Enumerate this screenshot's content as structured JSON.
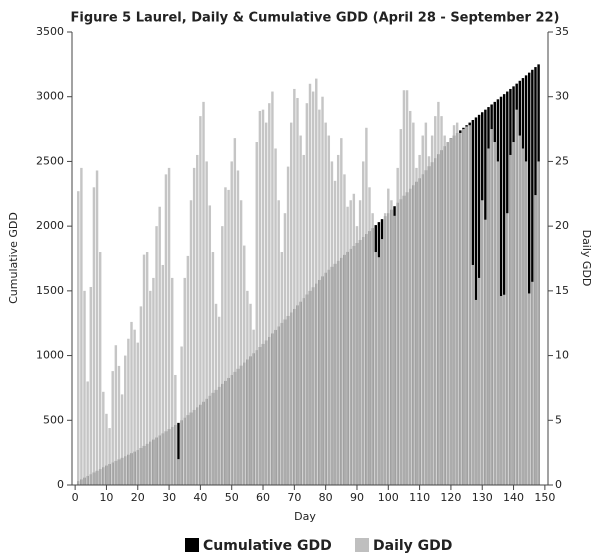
{
  "chart_data": {
    "type": "bar",
    "title": "Figure 5 Laurel, Daily & Cumulative GDD (April 28 - September 22)",
    "xlabel": "Day",
    "ylabel": "Cumulative GDD",
    "y2label": "Daily GDD",
    "x": [
      1,
      2,
      3,
      4,
      5,
      6,
      7,
      8,
      9,
      10,
      11,
      12,
      13,
      14,
      15,
      16,
      17,
      18,
      19,
      20,
      21,
      22,
      23,
      24,
      25,
      26,
      27,
      28,
      29,
      30,
      31,
      32,
      33,
      34,
      35,
      36,
      37,
      38,
      39,
      40,
      41,
      42,
      43,
      44,
      45,
      46,
      47,
      48,
      49,
      50,
      51,
      52,
      53,
      54,
      55,
      56,
      57,
      58,
      59,
      60,
      61,
      62,
      63,
      64,
      65,
      66,
      67,
      68,
      69,
      70,
      71,
      72,
      73,
      74,
      75,
      76,
      77,
      78,
      79,
      80,
      81,
      82,
      83,
      84,
      85,
      86,
      87,
      88,
      89,
      90,
      91,
      92,
      93,
      94,
      95,
      96,
      97,
      98,
      99,
      100,
      101,
      102,
      103,
      104,
      105,
      106,
      107,
      108,
      109,
      110,
      111,
      112,
      113,
      114,
      115,
      116,
      117,
      118,
      119,
      120,
      121,
      122,
      123,
      124,
      125,
      126,
      127,
      128,
      129,
      130,
      131,
      132,
      133,
      134,
      135,
      136,
      137,
      138,
      139,
      140,
      141,
      142,
      143,
      144,
      145,
      146,
      147,
      148
    ],
    "series": [
      {
        "name": "Cumulative GDD",
        "color": "#000000",
        "axis": "y",
        "values": [
          30,
          43,
          57,
          70,
          83,
          97,
          110,
          123,
          137,
          150,
          162,
          174,
          186,
          198,
          210,
          222,
          234,
          246,
          258,
          270,
          286,
          302,
          318,
          335,
          351,
          367,
          383,
          399,
          415,
          432,
          448,
          464,
          480,
          500,
          520,
          540,
          560,
          580,
          600,
          620,
          643,
          666,
          689,
          712,
          735,
          758,
          781,
          804,
          827,
          850,
          874,
          898,
          922,
          946,
          970,
          994,
          1018,
          1042,
          1066,
          1090,
          1117,
          1144,
          1171,
          1198,
          1225,
          1252,
          1279,
          1306,
          1333,
          1360,
          1388,
          1416,
          1444,
          1472,
          1500,
          1528,
          1556,
          1584,
          1612,
          1640,
          1663,
          1686,
          1709,
          1732,
          1755,
          1778,
          1801,
          1824,
          1847,
          1870,
          1893,
          1916,
          1939,
          1962,
          1985,
          2008,
          2031,
          2054,
          2077,
          2100,
          2127,
          2154,
          2181,
          2208,
          2235,
          2262,
          2289,
          2316,
          2343,
          2370,
          2401,
          2432,
          2463,
          2494,
          2525,
          2556,
          2587,
          2618,
          2649,
          2680,
          2700,
          2720,
          2740,
          2760,
          2780,
          2800,
          2820,
          2840,
          2860,
          2880,
          2900,
          2920,
          2940,
          2960,
          2980,
          3000,
          3020,
          3040,
          3060,
          3080,
          3101,
          3123,
          3144,
          3165,
          3186,
          3208,
          3229,
          3250
        ]
      },
      {
        "name": "Daily GDD",
        "color": "#bfbfbf",
        "axis": "y2",
        "values": [
          22.7,
          24.5,
          15,
          8,
          15.3,
          23,
          24.3,
          18,
          7.2,
          5.5,
          4.4,
          8.8,
          10.8,
          9.2,
          7,
          10,
          11.3,
          12.6,
          12,
          11,
          13.8,
          17.8,
          18,
          15,
          16,
          20,
          21.5,
          17,
          24,
          24.5,
          16,
          8.5,
          2,
          10.7,
          16,
          17.7,
          22,
          24.5,
          25.5,
          28.5,
          29.6,
          25,
          21.6,
          18,
          14,
          13,
          20,
          23,
          22.8,
          25,
          26.8,
          24.3,
          22,
          18.5,
          15,
          14,
          12,
          26.5,
          28.9,
          29,
          28,
          29.5,
          30.4,
          26,
          22,
          18,
          21,
          24.6,
          28,
          30.6,
          29.9,
          27,
          25.5,
          29.5,
          31,
          30.4,
          31.4,
          29,
          30,
          28,
          27,
          25,
          23.5,
          25.5,
          26.8,
          24,
          21.5,
          22,
          22.5,
          20,
          22,
          25,
          27.6,
          23,
          21,
          18,
          17.6,
          19,
          21,
          22.9,
          22,
          20.8,
          24.5,
          27.5,
          30.5,
          30.5,
          28.9,
          28,
          24.5,
          25.5,
          27,
          28,
          25.4,
          27,
          28.5,
          29.6,
          28.5,
          27,
          26.5,
          26.8,
          27.8,
          28,
          27.2,
          27.5,
          27.7,
          27.8,
          17,
          14.3,
          16,
          22,
          20.5,
          26,
          27.5,
          26.5,
          25,
          14.6,
          14.7,
          21,
          25.5,
          26.5,
          29,
          27,
          26,
          25,
          14.8,
          15.7,
          22.4,
          25
        ]
      }
    ],
    "xlim": [
      -1,
      151
    ],
    "xticks": [
      0,
      10,
      20,
      30,
      40,
      50,
      60,
      70,
      80,
      90,
      100,
      110,
      120,
      130,
      140,
      150
    ],
    "ylim": [
      0,
      3500
    ],
    "yticks": [
      0,
      500,
      1000,
      1500,
      2000,
      2500,
      3000,
      3500
    ],
    "y2lim": [
      0,
      35
    ],
    "y2ticks": [
      0,
      5,
      10,
      15,
      20,
      25,
      30,
      35
    ],
    "grid": false,
    "legend": "bottom"
  }
}
